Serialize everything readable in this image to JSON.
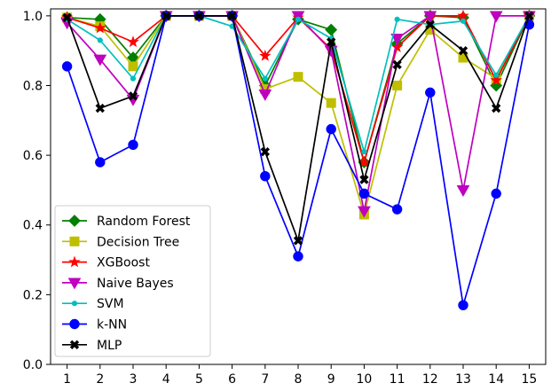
{
  "chart_data": {
    "type": "line",
    "title": "",
    "xlabel": "",
    "ylabel": "",
    "x": [
      1,
      2,
      3,
      4,
      5,
      6,
      7,
      8,
      9,
      10,
      11,
      12,
      13,
      14,
      15
    ],
    "xlim": [
      0.5,
      15.5
    ],
    "ylim": [
      0.0,
      1.02
    ],
    "yticks": [
      "0.0",
      "0.2",
      "0.4",
      "0.6",
      "0.8",
      "1.0"
    ],
    "xticks": [
      "1",
      "2",
      "3",
      "4",
      "5",
      "6",
      "7",
      "8",
      "9",
      "10",
      "11",
      "12",
      "13",
      "14",
      "15"
    ],
    "grid": false,
    "legend_position": "lower-left",
    "series": [
      {
        "name": "Random Forest",
        "color": "#008000",
        "marker": "diamond",
        "values": [
          0.995,
          0.99,
          0.88,
          1.0,
          1.0,
          1.0,
          0.8,
          0.99,
          0.96,
          0.58,
          0.92,
          1.0,
          0.995,
          0.8,
          1.0
        ]
      },
      {
        "name": "Decision Tree",
        "color": "#bfbf00",
        "marker": "square",
        "values": [
          0.995,
          0.97,
          0.855,
          1.0,
          1.0,
          1.0,
          0.79,
          0.825,
          0.75,
          0.43,
          0.8,
          0.96,
          0.88,
          0.82,
          1.0
        ]
      },
      {
        "name": "XGBoost",
        "color": "#ff0000",
        "marker": "star",
        "values": [
          0.995,
          0.965,
          0.925,
          1.0,
          1.0,
          1.0,
          0.885,
          0.995,
          0.905,
          0.58,
          0.91,
          1.0,
          1.0,
          0.815,
          1.0
        ]
      },
      {
        "name": "Naive Bayes",
        "color": "#bf00bf",
        "marker": "triangle-down",
        "values": [
          0.98,
          0.875,
          0.76,
          1.0,
          1.0,
          1.0,
          0.775,
          1.0,
          0.9,
          0.44,
          0.935,
          1.0,
          0.5,
          1.0,
          1.0
        ]
      },
      {
        "name": "SVM",
        "color": "#00bfbf",
        "marker": "point",
        "values": [
          0.99,
          0.93,
          0.82,
          1.0,
          1.0,
          0.97,
          0.82,
          0.99,
          0.935,
          0.61,
          0.99,
          0.975,
          0.985,
          0.83,
          1.0
        ]
      },
      {
        "name": "k-NN",
        "color": "#0000ff",
        "marker": "circle",
        "values": [
          0.855,
          0.58,
          0.63,
          1.0,
          1.0,
          1.0,
          0.54,
          0.31,
          0.675,
          0.49,
          0.445,
          0.78,
          0.17,
          0.49,
          0.975
        ]
      },
      {
        "name": "MLP",
        "color": "#000000",
        "marker": "x",
        "values": [
          0.995,
          0.735,
          0.77,
          1.0,
          1.0,
          1.0,
          0.61,
          0.355,
          0.925,
          0.53,
          0.86,
          0.975,
          0.9,
          0.735,
          1.0
        ]
      }
    ]
  }
}
